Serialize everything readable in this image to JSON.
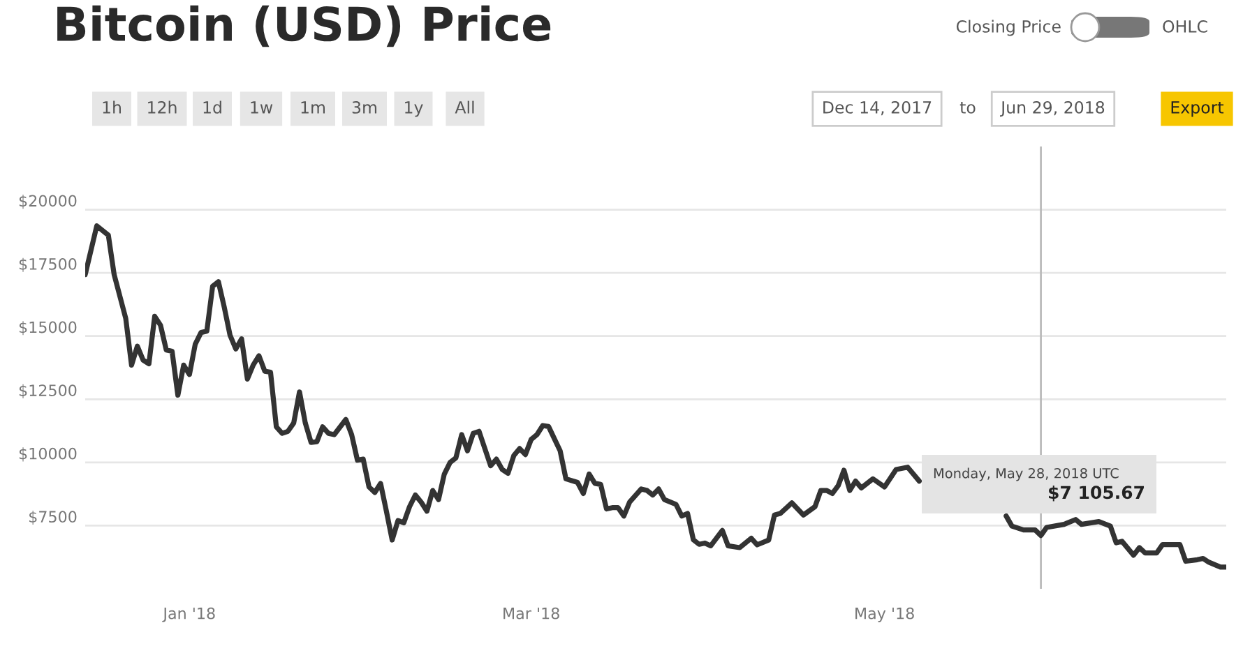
{
  "chart_data": {
    "type": "line",
    "title": "Bitcoin (USD) Price",
    "x": [
      "2017-12-14",
      "2017-12-16",
      "2017-12-18",
      "2017-12-19",
      "2017-12-21",
      "2017-12-22",
      "2017-12-23",
      "2017-12-24",
      "2017-12-25",
      "2017-12-26",
      "2017-12-27",
      "2017-12-28",
      "2017-12-29",
      "2017-12-30",
      "2017-12-31",
      "2018-01-01",
      "2018-01-02",
      "2018-01-03",
      "2018-01-04",
      "2018-01-05",
      "2018-01-06",
      "2018-01-07",
      "2018-01-08",
      "2018-01-09",
      "2018-01-10",
      "2018-01-11",
      "2018-01-12",
      "2018-01-13",
      "2018-01-14",
      "2018-01-15",
      "2018-01-16",
      "2018-01-17",
      "2018-01-18",
      "2018-01-19",
      "2018-01-20",
      "2018-01-21",
      "2018-01-22",
      "2018-01-23",
      "2018-01-24",
      "2018-01-25",
      "2018-01-26",
      "2018-01-28",
      "2018-01-29",
      "2018-01-30",
      "2018-01-31",
      "2018-02-01",
      "2018-02-02",
      "2018-02-03",
      "2018-02-04",
      "2018-02-05",
      "2018-02-06",
      "2018-02-07",
      "2018-02-08",
      "2018-02-09",
      "2018-02-10",
      "2018-02-11",
      "2018-02-12",
      "2018-02-13",
      "2018-02-14",
      "2018-02-15",
      "2018-02-16",
      "2018-02-17",
      "2018-02-18",
      "2018-02-19",
      "2018-02-20",
      "2018-02-22",
      "2018-02-23",
      "2018-02-24",
      "2018-02-25",
      "2018-02-26",
      "2018-02-27",
      "2018-02-28",
      "2018-03-01",
      "2018-03-02",
      "2018-03-03",
      "2018-03-04",
      "2018-03-06",
      "2018-03-07",
      "2018-03-09",
      "2018-03-10",
      "2018-03-11",
      "2018-03-12",
      "2018-03-13",
      "2018-03-14",
      "2018-03-15",
      "2018-03-16",
      "2018-03-17",
      "2018-03-18",
      "2018-03-20",
      "2018-03-21",
      "2018-03-22",
      "2018-03-23",
      "2018-03-24",
      "2018-03-26",
      "2018-03-27",
      "2018-03-28",
      "2018-03-29",
      "2018-03-30",
      "2018-03-31",
      "2018-04-01",
      "2018-04-03",
      "2018-04-04",
      "2018-04-06",
      "2018-04-08",
      "2018-04-09",
      "2018-04-11",
      "2018-04-12",
      "2018-04-13",
      "2018-04-15",
      "2018-04-17",
      "2018-04-19",
      "2018-04-20",
      "2018-04-21",
      "2018-04-22",
      "2018-04-23",
      "2018-04-24",
      "2018-04-25",
      "2018-04-26",
      "2018-04-27",
      "2018-04-29",
      "2018-05-01",
      "2018-05-03",
      "2018-05-05",
      "2018-05-07",
      "2018-05-15",
      "2018-05-22",
      "2018-05-23",
      "2018-05-25",
      "2018-05-27",
      "2018-05-28",
      "2018-05-29",
      "2018-06-01",
      "2018-06-03",
      "2018-06-04",
      "2018-06-07",
      "2018-06-09",
      "2018-06-10",
      "2018-06-11",
      "2018-06-13",
      "2018-06-14",
      "2018-06-15",
      "2018-06-17",
      "2018-06-18",
      "2018-06-21",
      "2018-06-22",
      "2018-06-24",
      "2018-06-25",
      "2018-06-26",
      "2018-06-28",
      "2018-06-29"
    ],
    "series": [
      {
        "color": "#333333",
        "values": [
          17430,
          19360,
          18990,
          17430,
          15700,
          13850,
          14600,
          14050,
          13900,
          15780,
          15430,
          14450,
          14400,
          12660,
          13850,
          13480,
          14680,
          15140,
          15190,
          16970,
          17150,
          16150,
          15040,
          14490,
          14890,
          13300,
          13850,
          14220,
          13610,
          13570,
          11410,
          11150,
          11230,
          11560,
          12790,
          11560,
          10790,
          10820,
          11410,
          11150,
          11100,
          11700,
          11100,
          10090,
          10130,
          9030,
          8810,
          9170,
          8070,
          6930,
          7700,
          7610,
          8250,
          8710,
          8430,
          8070,
          8890,
          8530,
          9540,
          10000,
          10180,
          11100,
          10460,
          11150,
          11230,
          9870,
          10130,
          9720,
          9570,
          10270,
          10550,
          10310,
          10910,
          11100,
          11460,
          11420,
          10460,
          9350,
          9210,
          8770,
          9540,
          9170,
          9130,
          8160,
          8210,
          8210,
          7880,
          8430,
          8950,
          8890,
          8710,
          8950,
          8530,
          8340,
          7880,
          7980,
          6940,
          6760,
          6810,
          6700,
          7310,
          6700,
          6630,
          7000,
          6740,
          6930,
          7920,
          7980,
          8400,
          7920,
          8250,
          8890,
          8890,
          8770,
          9080,
          9690,
          8890,
          9260,
          8990,
          9350,
          9030,
          9720,
          9810,
          9260,
          null,
          7880,
          7480,
          7330,
          7330,
          7110,
          7430,
          7550,
          7740,
          7550,
          7660,
          7480,
          6820,
          6880,
          6330,
          6630,
          6420,
          6420,
          6750,
          6750,
          6090,
          6150,
          6200,
          6050,
          5860,
          5860
        ]
      }
    ],
    "xlim": [
      "2017-12-14",
      "2018-06-29"
    ],
    "xticks": [
      {
        "value": "2018-01-01",
        "label": "Jan '18"
      },
      {
        "value": "2018-03-01",
        "label": "Mar '18"
      },
      {
        "value": "2018-05-01",
        "label": "May '18"
      }
    ],
    "ylim": [
      5000,
      22500
    ],
    "yticks": [
      {
        "value": 7500,
        "label": "$7500"
      },
      {
        "value": 10000,
        "label": "$10000"
      },
      {
        "value": 12500,
        "label": "$12500"
      },
      {
        "value": 15000,
        "label": "$15000"
      },
      {
        "value": 17500,
        "label": "$17500"
      },
      {
        "value": 20000,
        "label": "$20000"
      }
    ],
    "grid": "y",
    "line_style": "solid",
    "ref_lines": [
      {
        "axis": "x",
        "value": "2018-05-28",
        "color": "#bbbbbb"
      }
    ],
    "annotations": [
      "Closing Price",
      "OHLC",
      "1h",
      "12h",
      "1d",
      "1w",
      "1m",
      "3m",
      "1y",
      "All",
      "Dec 14, 2017",
      "to",
      "Jun 29, 2018",
      "Export",
      "Monday, May 28, 2018 UTC",
      "$7 105.67"
    ]
  }
}
